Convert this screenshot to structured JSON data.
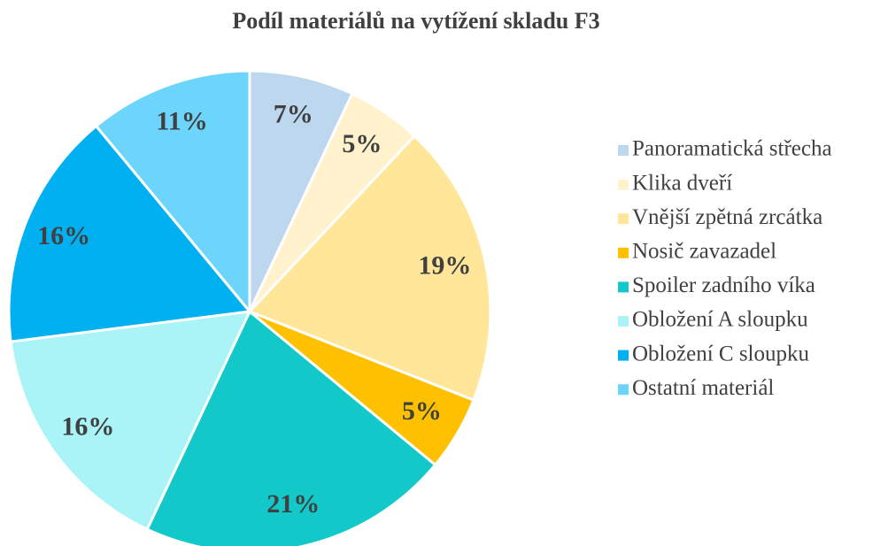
{
  "chart_data": {
    "type": "pie",
    "title": "Podíl materiálů na vytížení skladu F3",
    "categories": [
      "Panoramatická střecha",
      "Klika dveří",
      "Vnější zpětná zrcátka",
      "Nosič zavazadel",
      "Spoiler zadního víka",
      "Obložení A sloupku",
      "Obložení C sloupku",
      "Ostatní materiál"
    ],
    "values": [
      7,
      5,
      19,
      5,
      21,
      16,
      16,
      11
    ],
    "value_labels": [
      "7%",
      "5%",
      "19%",
      "5%",
      "21%",
      "16%",
      "16%",
      "11%"
    ],
    "colors": [
      "#bdd7ee",
      "#fff2cc",
      "#ffe699",
      "#ffc000",
      "#12c8c8",
      "#aaf4f8",
      "#00b0f0",
      "#6dd5fb"
    ],
    "legend": "right"
  }
}
